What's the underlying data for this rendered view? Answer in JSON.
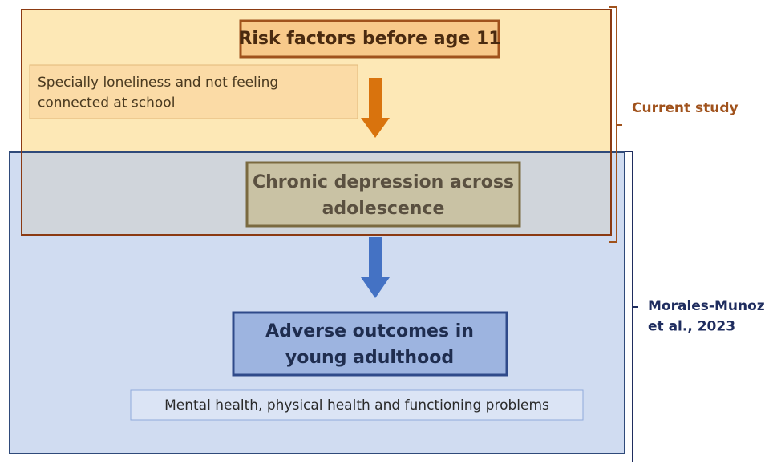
{
  "nodes": [
    {
      "label": [
        "Risk factors before age 11"
      ]
    },
    {
      "label": [
        "Specially loneliness and not feeling",
        "connected at school"
      ]
    },
    {
      "label": [
        "Chronic depression across",
        "adolescence"
      ]
    },
    {
      "label": [
        "Adverse outcomes in",
        "young adulthood"
      ]
    },
    {
      "label": [
        "Mental health, physical health and functioning problems"
      ]
    }
  ],
  "brackets": [
    {
      "label": [
        "Current study"
      ]
    },
    {
      "label": [
        "Morales-Munoz",
        "et al., 2023"
      ]
    }
  ]
}
